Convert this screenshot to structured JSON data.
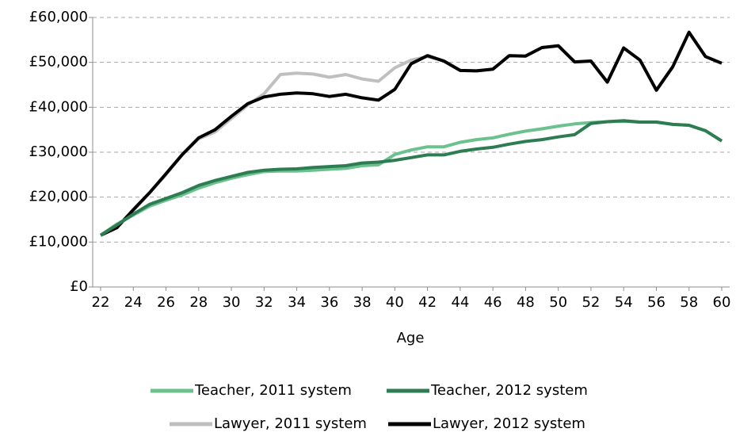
{
  "chart_data": {
    "type": "line",
    "x_label": "Age",
    "x": [
      22,
      23,
      24,
      25,
      26,
      27,
      28,
      29,
      30,
      31,
      32,
      33,
      34,
      35,
      36,
      37,
      38,
      39,
      40,
      41,
      42,
      43,
      44,
      45,
      46,
      47,
      48,
      49,
      50,
      51,
      52,
      53,
      54,
      55,
      56,
      57,
      58,
      59,
      60
    ],
    "xlim": [
      22,
      60
    ],
    "xticks": [
      22,
      24,
      26,
      28,
      30,
      32,
      34,
      36,
      38,
      40,
      42,
      44,
      46,
      48,
      50,
      52,
      54,
      56,
      58,
      60
    ],
    "ylim": [
      0,
      60000
    ],
    "yticks": [
      {
        "value": 0,
        "label": "£0"
      },
      {
        "value": 10000,
        "label": "£10,000"
      },
      {
        "value": 20000,
        "label": "£20,000"
      },
      {
        "value": 30000,
        "label": "£30,000"
      },
      {
        "value": 40000,
        "label": "£40,000"
      },
      {
        "value": 50000,
        "label": "£50,000"
      },
      {
        "value": 60000,
        "label": "£60,000"
      }
    ],
    "grid": true,
    "legend": "bottom",
    "series": [
      {
        "name": "Teacher, 2011 system",
        "color": "#6cc28f",
        "values": [
          11500,
          14000,
          16000,
          18000,
          19300,
          20500,
          22000,
          23200,
          24200,
          25000,
          25700,
          25800,
          25800,
          26000,
          26200,
          26400,
          27000,
          27200,
          29500,
          30500,
          31200,
          31200,
          32200,
          32800,
          33200,
          34000,
          34700,
          35200,
          35800,
          36300,
          36600,
          36800,
          36900,
          36700,
          36700,
          36200,
          36000,
          34800,
          32500
        ]
      },
      {
        "name": "Teacher, 2012 system",
        "color": "#2e7d52",
        "values": [
          11500,
          13800,
          16200,
          18400,
          19700,
          21000,
          22600,
          23700,
          24600,
          25500,
          26000,
          26200,
          26300,
          26600,
          26800,
          27000,
          27600,
          27800,
          28200,
          28800,
          29400,
          29400,
          30200,
          30700,
          31100,
          31800,
          32400,
          32800,
          33400,
          33900,
          36400,
          36800,
          37000,
          36700,
          36700,
          36200,
          36000,
          34800,
          32500
        ]
      },
      {
        "name": "Lawyer, 2011 system",
        "color": "#bfbfbf",
        "values": [
          11500,
          13500,
          17000,
          21000,
          25000,
          29500,
          33000,
          34500,
          37500,
          40500,
          43000,
          47300,
          47600,
          47400,
          46700,
          47300,
          46300,
          45800,
          48800,
          50500,
          51300,
          50300,
          48200,
          48100,
          48500,
          51500,
          51400,
          53300,
          53700,
          50100,
          50300,
          45600,
          53200,
          50500,
          43800,
          49000,
          56700,
          51300,
          49800
        ]
      },
      {
        "name": "Lawyer, 2012 system",
        "color": "#000000",
        "values": [
          11500,
          13200,
          17200,
          21000,
          25200,
          29500,
          33200,
          35000,
          38000,
          40800,
          42300,
          42900,
          43200,
          43000,
          42400,
          42900,
          42100,
          41600,
          44000,
          49700,
          51500,
          50300,
          48200,
          48100,
          48500,
          51500,
          51400,
          53300,
          53700,
          50100,
          50300,
          45600,
          53200,
          50500,
          43800,
          49000,
          56700,
          51300,
          49800
        ]
      }
    ]
  }
}
